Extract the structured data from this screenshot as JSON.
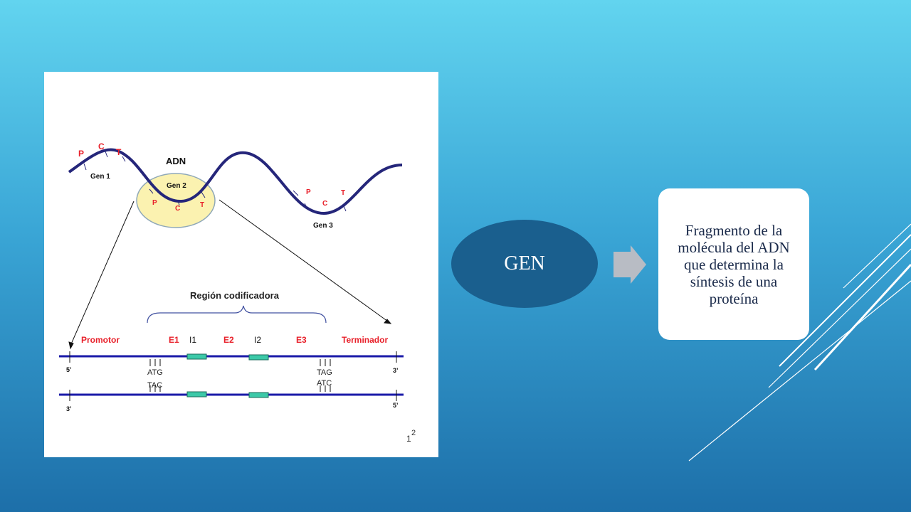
{
  "figure": {
    "dna_label": "ADN",
    "genes": [
      {
        "name": "Gen 1",
        "promoter": "P",
        "coding": "C",
        "terminator": "T"
      },
      {
        "name": "Gen 2",
        "promoter": "P",
        "coding": "C",
        "terminator": "T"
      },
      {
        "name": "Gen 3",
        "promoter": "P",
        "coding": "C",
        "terminator": "T"
      }
    ],
    "coding_region": "Región codificadora",
    "segments": [
      "Promotor",
      "E1",
      "I1",
      "E2",
      "I2",
      "E3",
      "Terminador"
    ],
    "strand_ends": {
      "top_left": "5’",
      "top_right": "3’",
      "bottom_left": "3’",
      "bottom_right": "5’"
    },
    "codons": {
      "start_top": "ATG",
      "start_bottom": "TAC",
      "stop_top": "TAG",
      "stop_bottom": "ATC"
    },
    "footnote": "1",
    "footnote_sup": "2"
  },
  "diagram": {
    "term": "GEN",
    "definition": "Fragmento de la molécula del ADN que determina la síntesis de una proteína"
  }
}
